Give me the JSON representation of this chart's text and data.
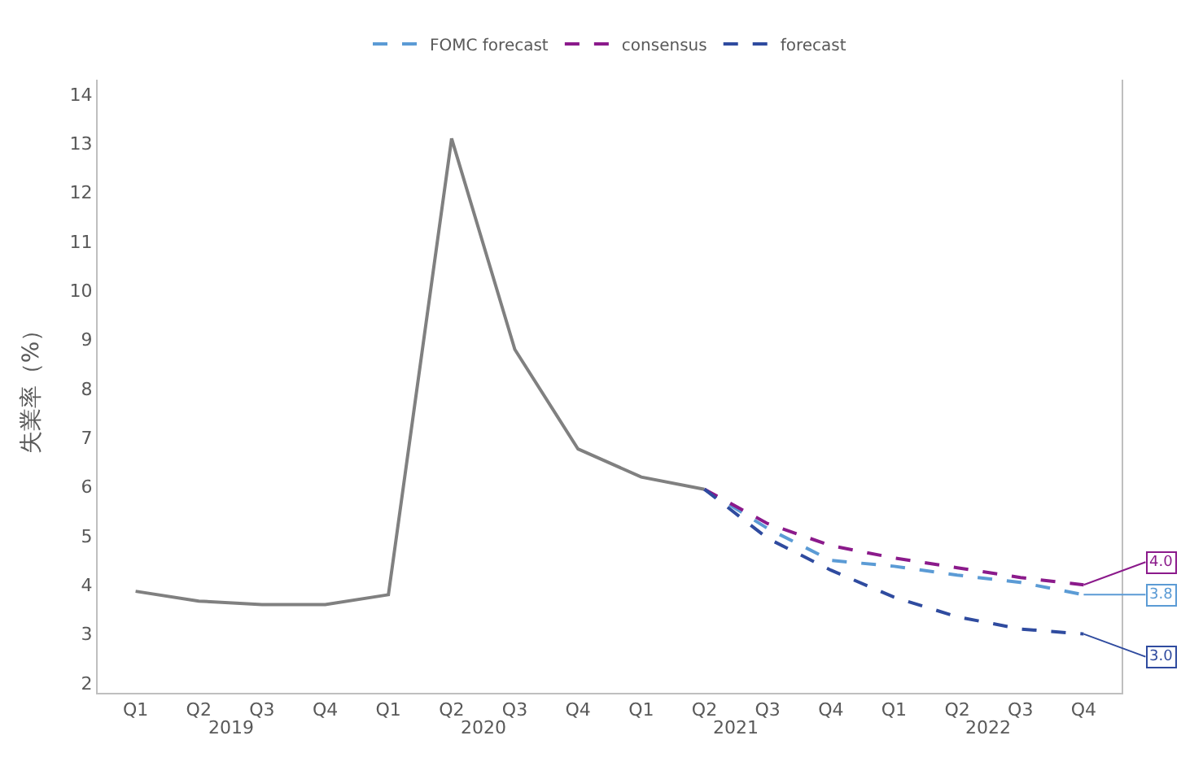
{
  "chart_data": {
    "type": "line",
    "ylabel": "失業率（%）",
    "categories": [
      "Q1",
      "Q2",
      "Q3",
      "Q4",
      "Q1",
      "Q2",
      "Q3",
      "Q4",
      "Q1",
      "Q2",
      "Q3",
      "Q4",
      "Q1",
      "Q2",
      "Q3",
      "Q4"
    ],
    "annotations": [
      "2019",
      "2020",
      "2021",
      "2022"
    ],
    "series": [
      {
        "color": "#808080",
        "values": [
          3.87,
          3.67,
          3.6,
          3.6,
          3.8,
          13.1,
          8.8,
          6.77,
          6.2,
          5.95,
          null,
          null,
          null,
          null,
          null,
          null
        ],
        "line_style": "solid"
      },
      {
        "name": "FOMC forecast",
        "color": "#5b9bd5",
        "values": [
          null,
          null,
          null,
          null,
          null,
          null,
          null,
          null,
          null,
          5.95,
          5.15,
          4.5,
          4.38,
          4.2,
          4.05,
          3.8
        ],
        "line_style": "dashed",
        "value_labels": [
          null,
          null,
          null,
          null,
          null,
          null,
          null,
          null,
          null,
          null,
          null,
          null,
          null,
          null,
          null,
          "3.8"
        ]
      },
      {
        "name": "consensus",
        "color": "#8b1a8b",
        "values": [
          null,
          null,
          null,
          null,
          null,
          null,
          null,
          null,
          null,
          5.95,
          5.25,
          4.8,
          4.55,
          4.35,
          4.15,
          4.0
        ],
        "line_style": "dashed",
        "value_labels": [
          null,
          null,
          null,
          null,
          null,
          null,
          null,
          null,
          null,
          null,
          null,
          null,
          null,
          null,
          null,
          "4.0"
        ]
      },
      {
        "name": "forecast",
        "color": "#2f4b9f",
        "values": [
          null,
          null,
          null,
          null,
          null,
          null,
          null,
          null,
          null,
          5.95,
          4.95,
          4.3,
          3.75,
          3.35,
          3.1,
          3.0
        ],
        "line_style": "dashed",
        "value_labels": [
          null,
          null,
          null,
          null,
          null,
          null,
          null,
          null,
          null,
          null,
          null,
          null,
          null,
          null,
          null,
          "3.0"
        ]
      }
    ],
    "ylim": [
      1.8,
      14.3
    ],
    "yticks": [
      2,
      3,
      4,
      5,
      6,
      7,
      8,
      9,
      10,
      11,
      12,
      13,
      14
    ],
    "grid": false,
    "legend": "top",
    "marker": "none"
  }
}
